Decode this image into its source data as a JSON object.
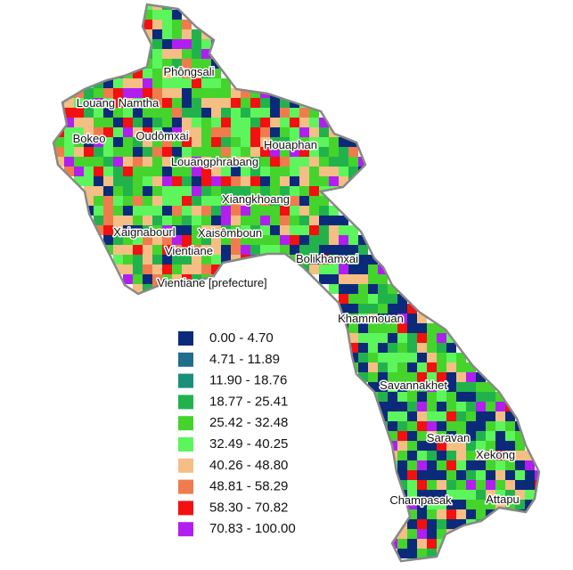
{
  "map": {
    "regions": [
      {
        "label": "Phôngsali"
      },
      {
        "label": "Louang Namtha"
      },
      {
        "label": "Bokeo"
      },
      {
        "label": "Oudômxai"
      },
      {
        "label": "Houaphan"
      },
      {
        "label": "Louangphrabang"
      },
      {
        "label": "Xiangkhoang"
      },
      {
        "label": "Xaignabourl"
      },
      {
        "label": "Xaisômboun"
      },
      {
        "label": "Vientiane"
      },
      {
        "label": "Bolikhamxai"
      },
      {
        "label": "Vientiane [prefecture]"
      },
      {
        "label": "Khammouan"
      },
      {
        "label": "Savannakhet"
      },
      {
        "label": "Saravan"
      },
      {
        "label": "Xekong"
      },
      {
        "label": "Champasak"
      },
      {
        "label": "Attapu"
      }
    ],
    "legend": {
      "classes": [
        {
          "label": "0.00 - 4.70",
          "color": "#0b2a7a"
        },
        {
          "label": "4.71 - 11.89",
          "color": "#1f6e8c"
        },
        {
          "label": "11.90 - 18.76",
          "color": "#1a8f7a"
        },
        {
          "label": "18.77 - 25.41",
          "color": "#22b24c"
        },
        {
          "label": "25.42 - 32.48",
          "color": "#44d42c"
        },
        {
          "label": "32.49 - 40.25",
          "color": "#5cf55c"
        },
        {
          "label": "40.26 - 48.80",
          "color": "#f5be84"
        },
        {
          "label": "48.81 - 58.29",
          "color": "#f07c4e"
        },
        {
          "label": "58.30 - 70.82",
          "color": "#f21010"
        },
        {
          "label": "70.83 - 100.00",
          "color": "#b01ff0"
        }
      ]
    }
  }
}
